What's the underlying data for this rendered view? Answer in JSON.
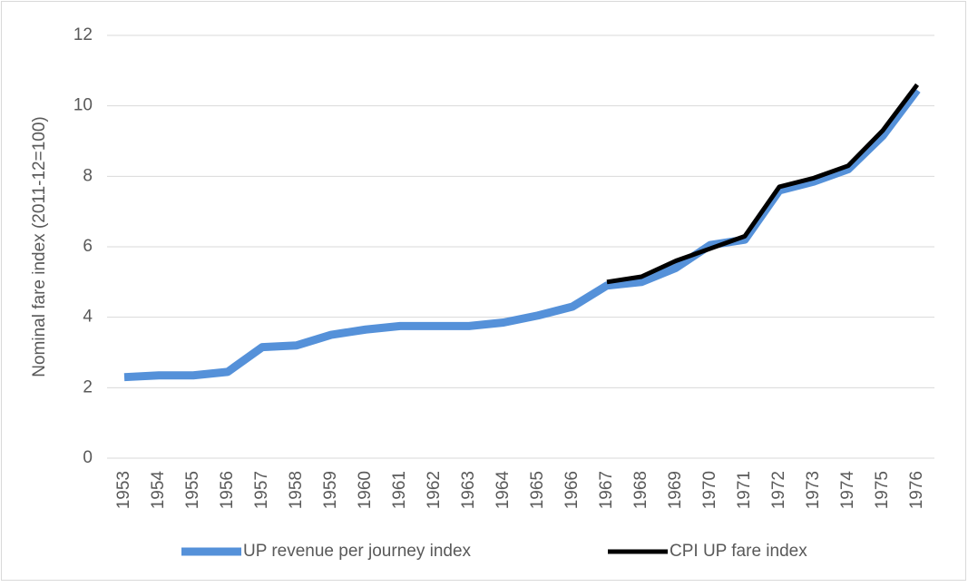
{
  "chart_data": {
    "type": "line",
    "y_label": "Nominal fare index (2011-12=100)",
    "categories": [
      "1953",
      "1954",
      "1955",
      "1956",
      "1957",
      "1958",
      "1959",
      "1960",
      "1961",
      "1962",
      "1963",
      "1964",
      "1965",
      "1966",
      "1967",
      "1968",
      "1969",
      "1970",
      "1971",
      "1972",
      "1973",
      "1974",
      "1975",
      "1976"
    ],
    "series": [
      {
        "name": "UP revenue per journey index",
        "color": "#5591d9",
        "values": [
          2.3,
          2.35,
          2.35,
          2.45,
          3.15,
          3.2,
          3.5,
          3.65,
          3.75,
          3.75,
          3.75,
          3.85,
          4.05,
          4.3,
          4.9,
          5.0,
          5.4,
          6.05,
          6.2,
          7.6,
          7.85,
          8.2,
          9.15,
          10.45
        ]
      },
      {
        "name": "CPI UP fare index",
        "color": "#000000",
        "values": [
          null,
          null,
          null,
          null,
          null,
          null,
          null,
          null,
          null,
          null,
          null,
          null,
          null,
          null,
          5.0,
          5.15,
          5.6,
          5.95,
          6.3,
          7.7,
          7.95,
          8.3,
          9.3,
          10.6
        ]
      }
    ],
    "ylim": [
      0,
      12
    ],
    "yticks": [
      0,
      2,
      4,
      6,
      8,
      10,
      12
    ],
    "grid": true
  }
}
